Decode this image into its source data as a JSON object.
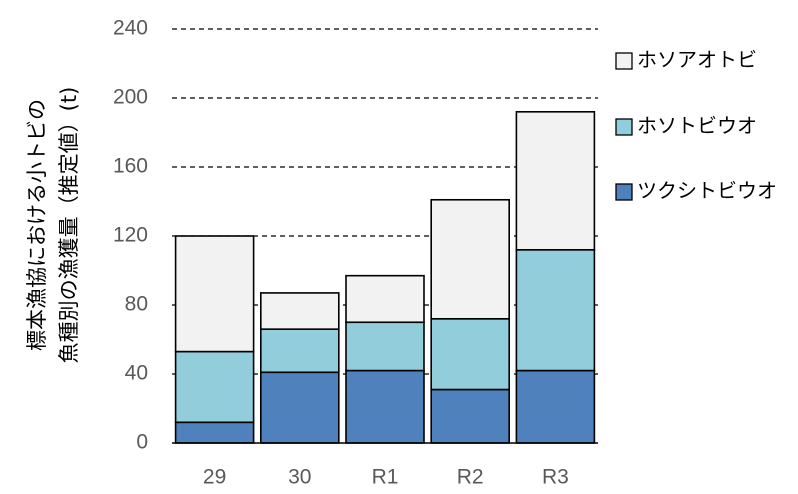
{
  "chart_data": {
    "type": "bar",
    "stacked": true,
    "categories": [
      "29",
      "30",
      "R1",
      "R2",
      "R3"
    ],
    "series": [
      {
        "name": "ツクシトビウオ",
        "color": "#4f81bd",
        "values": [
          12,
          41,
          42,
          31,
          42
        ]
      },
      {
        "name": "ホソトビウオ",
        "color": "#92cddc",
        "values": [
          41,
          25,
          28,
          41,
          70
        ]
      },
      {
        "name": "ホソアオトビ",
        "color": "#f2f2f2",
        "values": [
          67,
          21,
          27,
          69,
          80
        ]
      }
    ],
    "ylabel_lines": [
      "標本漁協における小トビの",
      "魚種別の漁獲量（推定値）(t)"
    ],
    "ylim": [
      0,
      240
    ],
    "yticks": [
      0,
      40,
      80,
      120,
      160,
      200,
      240
    ],
    "grid": "dashed-horizontal",
    "legend_position": "right"
  }
}
